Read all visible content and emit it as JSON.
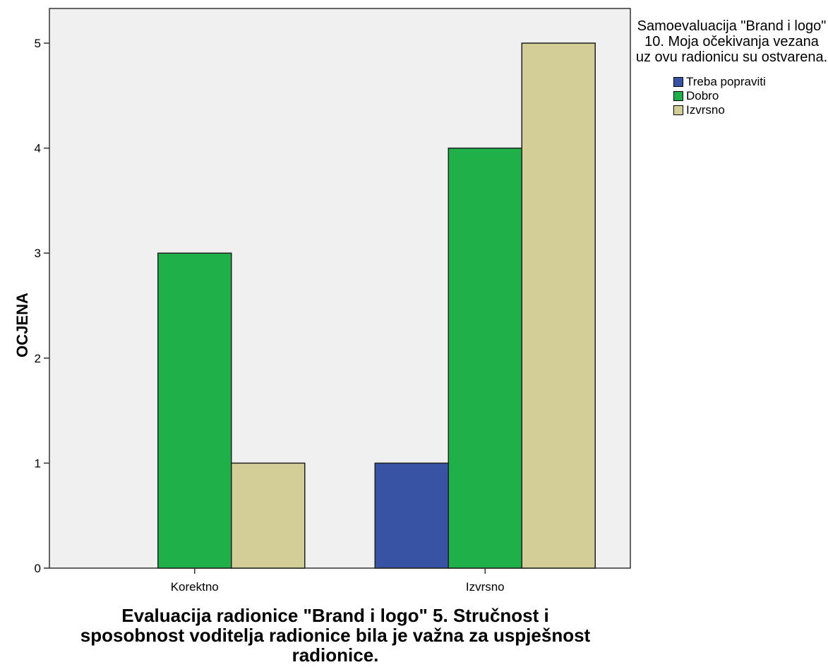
{
  "chart_data": {
    "type": "bar",
    "categories": [
      "Korektno",
      "Izvrsno"
    ],
    "series": [
      {
        "name": "Treba popraviti",
        "values": [
          0,
          1
        ],
        "color": "#3953a4"
      },
      {
        "name": "Dobro",
        "values": [
          3,
          4
        ],
        "color": "#20b04a"
      },
      {
        "name": "Izvrsno",
        "values": [
          1,
          5
        ],
        "color": "#d3ce97"
      }
    ],
    "title": "",
    "xlabel": "Evaluacija radionice \"Brand i logo\" 5. Stručnost i sposobnost voditelja radionice bila je važna za uspješnost radionice.",
    "ylabel": "OCJENA",
    "ylim": [
      0,
      5.33
    ],
    "yticks": [
      0,
      1,
      2,
      3,
      4,
      5
    ],
    "legend_title": "Samoevaluacija \"Brand i logo\" 10. Moja očekivanja vezana uz ovu radionicu su ostvarena.",
    "legend_position": "right",
    "plot_background": "#f0f0f0",
    "grid": false
  }
}
